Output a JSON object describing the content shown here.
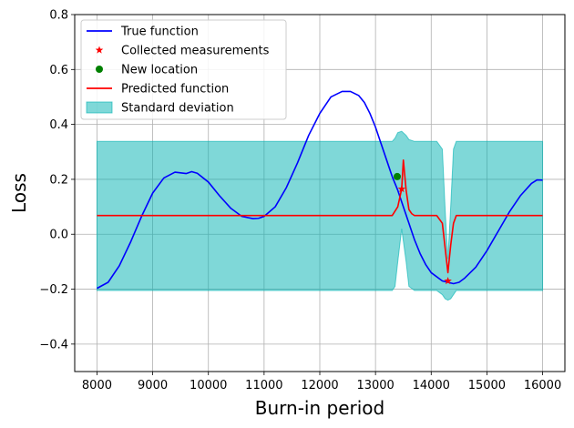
{
  "chart_data": {
    "type": "line",
    "xlabel": "Burn-in period",
    "ylabel": "Loss",
    "xlim": [
      7600,
      16400
    ],
    "ylim": [
      -0.5,
      0.8
    ],
    "x_ticks": [
      8000,
      9000,
      10000,
      11000,
      12000,
      13000,
      14000,
      15000,
      16000
    ],
    "y_ticks": [
      -0.4,
      -0.2,
      0.0,
      0.2,
      0.4,
      0.6,
      0.8
    ],
    "x_tick_labels": [
      "8000",
      "9000",
      "10000",
      "11000",
      "12000",
      "13000",
      "14000",
      "15000",
      "16000"
    ],
    "y_tick_labels": [
      "−0.4",
      "−0.2",
      "0.0",
      "0.2",
      "0.4",
      "0.6",
      "0.8"
    ],
    "grid": true,
    "legend_position": "top-left",
    "colors": {
      "true_function": "#0000ff",
      "measurements": "#ff0000",
      "new_location": "#008000",
      "predicted": "#ff0000",
      "std_fill": "#00b2b2"
    },
    "series": [
      {
        "name": "True function",
        "kind": "line",
        "x": [
          8000,
          8200,
          8400,
          8600,
          8800,
          9000,
          9200,
          9400,
          9600,
          9700,
          9800,
          10000,
          10200,
          10400,
          10600,
          10800,
          10900,
          11000,
          11200,
          11400,
          11600,
          11800,
          12000,
          12200,
          12400,
          12550,
          12700,
          12800,
          12900,
          13000,
          13100,
          13200,
          13300,
          13400,
          13500,
          13600,
          13700,
          13800,
          13900,
          14000,
          14200,
          14400,
          14500,
          14600,
          14800,
          15000,
          15200,
          15400,
          15600,
          15800,
          15900,
          16000
        ],
        "y": [
          -0.197,
          -0.175,
          -0.115,
          -0.03,
          0.065,
          0.15,
          0.205,
          0.226,
          0.221,
          0.228,
          0.222,
          0.19,
          0.14,
          0.095,
          0.065,
          0.057,
          0.058,
          0.065,
          0.1,
          0.17,
          0.26,
          0.36,
          0.44,
          0.5,
          0.52,
          0.52,
          0.505,
          0.48,
          0.44,
          0.39,
          0.33,
          0.27,
          0.21,
          0.16,
          0.1,
          0.04,
          -0.02,
          -0.07,
          -0.11,
          -0.14,
          -0.17,
          -0.18,
          -0.175,
          -0.16,
          -0.12,
          -0.06,
          0.01,
          0.08,
          0.14,
          0.185,
          0.198,
          0.197
        ]
      },
      {
        "name": "Collected measurements",
        "kind": "marker",
        "x": [
          13470,
          14300
        ],
        "y": [
          0.165,
          -0.17
        ]
      },
      {
        "name": "New location",
        "kind": "marker",
        "x": [
          13390
        ],
        "y": [
          0.21
        ]
      },
      {
        "name": "Predicted function",
        "kind": "line",
        "x": [
          8000,
          13300,
          13400,
          13470,
          13500,
          13550,
          13600,
          13650,
          13700,
          14100,
          14200,
          14250,
          14300,
          14350,
          14400,
          14450,
          16000
        ],
        "y": [
          0.068,
          0.068,
          0.1,
          0.165,
          0.27,
          0.16,
          0.09,
          0.075,
          0.068,
          0.068,
          0.04,
          -0.05,
          -0.14,
          -0.04,
          0.04,
          0.068,
          0.068
        ]
      },
      {
        "name": "Standard deviation",
        "kind": "band",
        "x": [
          8000,
          13300,
          13350,
          13400,
          13470,
          13550,
          13600,
          13700,
          14100,
          14200,
          14250,
          14300,
          14350,
          14400,
          14450,
          16000
        ],
        "upper": [
          0.338,
          0.338,
          0.35,
          0.37,
          0.375,
          0.36,
          0.345,
          0.338,
          0.338,
          0.31,
          0.09,
          -0.09,
          0.1,
          0.31,
          0.338,
          0.338
        ],
        "lower": [
          -0.205,
          -0.205,
          -0.19,
          -0.1,
          0.02,
          -0.1,
          -0.19,
          -0.205,
          -0.205,
          -0.22,
          -0.235,
          -0.24,
          -0.235,
          -0.22,
          -0.205,
          -0.205
        ]
      }
    ]
  }
}
